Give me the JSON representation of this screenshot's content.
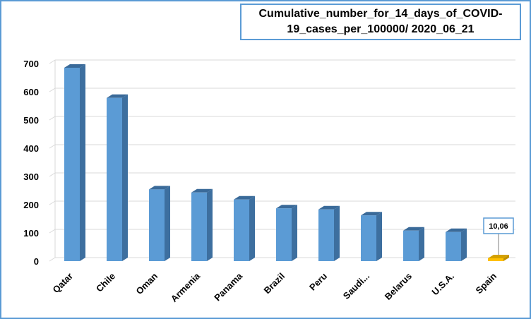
{
  "chart_data": {
    "type": "bar",
    "title": "Cumulative_number_for_14_days_of_COVID-19_cases_per_100000/ 2020_06_21",
    "title_lines": [
      "Cumulative_number_for_14_days_of_COVID-",
      "19_cases_per_100000/ 2020_06_21"
    ],
    "categories": [
      "Qatar",
      "Chile",
      "Oman",
      "Armenia",
      "Panama",
      "Brazil",
      "Peru",
      "Saudi...",
      "Belarus",
      "U.S.A.",
      "Spain"
    ],
    "values": [
      685,
      578,
      254,
      243,
      218,
      187,
      183,
      162,
      108,
      103,
      10.06
    ],
    "y_ticks": [
      "0",
      "100",
      "200",
      "300",
      "400",
      "500",
      "600",
      "700"
    ],
    "ylim": [
      0,
      700
    ],
    "xlabel": "",
    "ylabel": "",
    "grid": true,
    "legend": "none",
    "data_labels": [
      {
        "category": "Spain",
        "text": "10,06"
      }
    ],
    "colors": {
      "bar_front": "#5b9bd5",
      "bar_side": "#3d6f9f",
      "bar_top": "#3a6a99",
      "highlight_front": "#ffc000",
      "highlight_side": "#bf9000",
      "highlight_top": "#d4a100",
      "grid": "#d9d9d9",
      "frame": "#5b9bd5"
    },
    "highlight_category": "Spain"
  }
}
